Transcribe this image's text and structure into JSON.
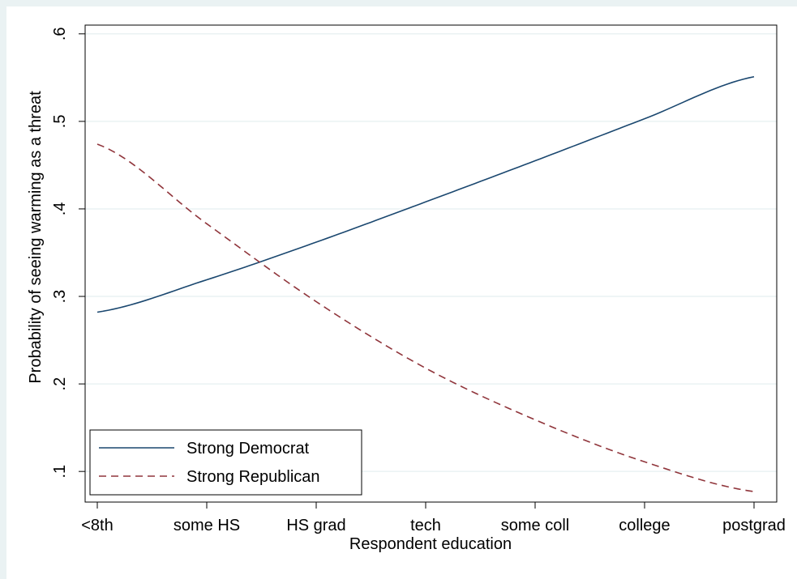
{
  "chart_data": {
    "type": "line",
    "title": "",
    "xlabel": "Respondent education",
    "ylabel": "Probability of seeing warming as a threat",
    "categories": [
      "<8th",
      "some HS",
      "HS grad",
      "tech",
      "some coll",
      "college",
      "postgrad"
    ],
    "yticks": [
      0.1,
      0.2,
      0.3,
      0.4,
      0.5,
      0.6
    ],
    "ytick_labels": [
      ".1",
      ".2",
      ".3",
      ".4",
      ".5",
      ".6"
    ],
    "ylim": [
      0.065,
      0.61
    ],
    "grid": true,
    "legend_position": "bottom-left",
    "series": [
      {
        "name": "Strong Democrat",
        "color": "#1a476f",
        "dash": "solid",
        "values": [
          0.282,
          0.319,
          0.362,
          0.408,
          0.455,
          0.503,
          0.551
        ]
      },
      {
        "name": "Strong Republican",
        "color": "#90353b",
        "dash": "dashed",
        "values": [
          0.474,
          0.383,
          0.294,
          0.218,
          0.159,
          0.111,
          0.077
        ]
      }
    ]
  }
}
